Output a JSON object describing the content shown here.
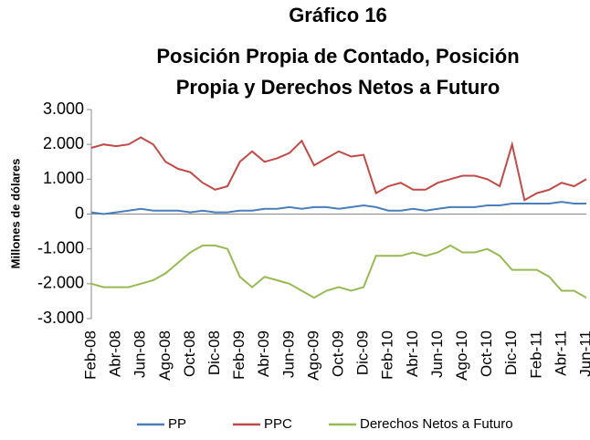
{
  "chart_data": {
    "type": "line",
    "title": "Gráfico 16",
    "subtitle": [
      "Posición Propia de Contado, Posición",
      "Propia y Derechos Netos a Futuro"
    ],
    "y_label": "Millones de dólares",
    "categories": [
      "Feb-08",
      null,
      "Abr-08",
      null,
      "Jun-08",
      null,
      "Ago-08",
      null,
      "Oct-08",
      null,
      "Dic-08",
      null,
      "Feb-09",
      null,
      "Abr-09",
      null,
      "Jun-09",
      null,
      "Ago-09",
      null,
      "Oct-09",
      null,
      "Dic-09",
      null,
      "Feb-10",
      null,
      "Abr-10",
      null,
      "Jun-10",
      null,
      "Ago-10",
      null,
      "Oct-10",
      null,
      "Dic-10",
      null,
      "Feb-11",
      null,
      "Abr-11",
      null,
      "Jun-11"
    ],
    "series": [
      {
        "name": "PP",
        "color": "#4a7ebb",
        "values": [
          50,
          0,
          50,
          100,
          150,
          100,
          100,
          100,
          50,
          100,
          50,
          50,
          100,
          100,
          150,
          150,
          200,
          150,
          200,
          200,
          150,
          200,
          250,
          200,
          100,
          100,
          150,
          100,
          150,
          200,
          200,
          200,
          250,
          250,
          300,
          300,
          300,
          300,
          350,
          300,
          300
        ]
      },
      {
        "name": "PPC",
        "color": "#be4b48",
        "values": [
          1900,
          2000,
          1950,
          2000,
          2200,
          2000,
          1500,
          1300,
          1200,
          900,
          700,
          800,
          1500,
          1800,
          1500,
          1600,
          1750,
          2100,
          1400,
          1600,
          1800,
          1650,
          1700,
          600,
          800,
          900,
          700,
          700,
          900,
          1000,
          1100,
          1100,
          1000,
          800,
          2000,
          400,
          600,
          700,
          900,
          800,
          1000
        ]
      },
      {
        "name": "Derechos Netos a Futuro",
        "color": "#98b954",
        "values": [
          -2000,
          -2100,
          -2100,
          -2100,
          -2000,
          -1900,
          -1700,
          -1400,
          -1100,
          -900,
          -900,
          -1000,
          -1800,
          -2100,
          -1800,
          -1900,
          -2000,
          -2200,
          -2400,
          -2200,
          -2100,
          -2200,
          -2100,
          -1200,
          -1200,
          -1200,
          -1100,
          -1200,
          -1100,
          -900,
          -1100,
          -1100,
          -1000,
          -1200,
          -1600,
          -1600,
          -1600,
          -1800,
          -2200,
          -2200,
          -2400
        ]
      }
    ],
    "ylim": [
      -3000,
      3000
    ],
    "yticks": [
      {
        "value": 3000,
        "label": "3.000"
      },
      {
        "value": 2000,
        "label": "2.000"
      },
      {
        "value": 1000,
        "label": "1.000"
      },
      0,
      {
        "value": -1000,
        "label": "-1.000"
      },
      {
        "value": -2000,
        "label": "-2.000"
      },
      {
        "value": -3000,
        "label": "-3.000"
      }
    ],
    "grid": false
  }
}
